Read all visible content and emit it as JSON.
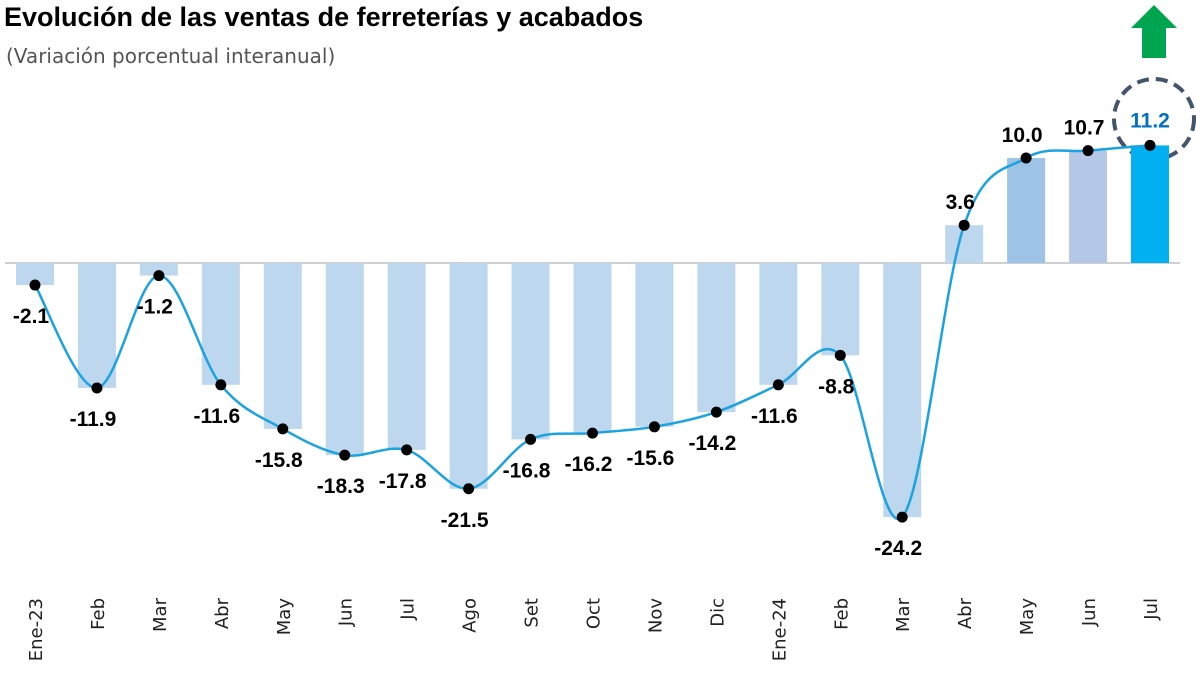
{
  "chart_data": {
    "type": "bar-line",
    "title": "Evolución de las ventas de ferreterías y acabados",
    "subtitle": "(Variación porcentual interanual)",
    "categories": [
      "Ene-23",
      "Feb",
      "Mar",
      "Abr",
      "May",
      "Jun",
      "Jul",
      "Ago",
      "Set",
      "Oct",
      "Nov",
      "Dic",
      "Ene-24",
      "Feb",
      "Mar",
      "Abr",
      "May",
      "Jun",
      "Jul"
    ],
    "values": [
      -2.1,
      -11.9,
      -1.2,
      -11.6,
      -15.8,
      -18.3,
      -17.8,
      -21.5,
      -16.8,
      -16.2,
      -15.6,
      -14.2,
      -11.6,
      -8.8,
      -24.2,
      3.6,
      10.0,
      10.7,
      11.2
    ],
    "value_labels": [
      "-2.1",
      "-11.9",
      "-1.2",
      "-11.6",
      "-15.8",
      "-18.3",
      "-17.8",
      "-21.5",
      "-16.8",
      "-16.2",
      "-15.6",
      "-14.2",
      "-11.6",
      "-8.8",
      "-24.2",
      "3.6",
      "10.0",
      "10.7",
      "11.2"
    ],
    "colors": [
      "#bdd7ee",
      "#bdd7ee",
      "#bdd7ee",
      "#bdd7ee",
      "#bdd7ee",
      "#bdd7ee",
      "#bdd7ee",
      "#bdd7ee",
      "#bdd7ee",
      "#bdd7ee",
      "#bdd7ee",
      "#bdd7ee",
      "#bdd7ee",
      "#bdd7ee",
      "#bdd7ee",
      "#bdd7ee",
      "#9dc3e6",
      "#b4c7e7",
      "#00b0f0"
    ],
    "line_color": "#1aa3e0"
  }
}
